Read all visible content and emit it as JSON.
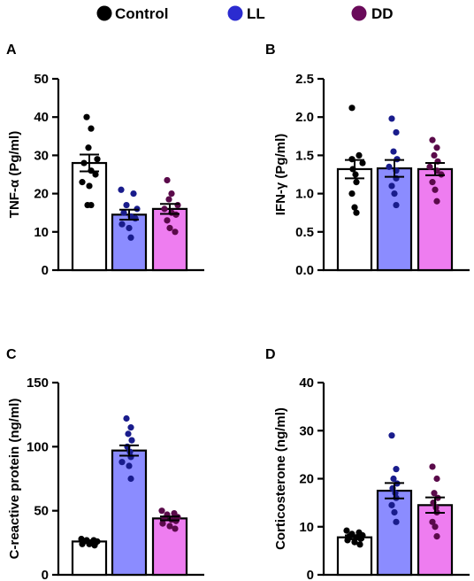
{
  "legend": [
    {
      "label": "Control",
      "color": "#000000"
    },
    {
      "label": "LL",
      "color": "#2b2bd0"
    },
    {
      "label": "DD",
      "color": "#6a0a5a"
    }
  ],
  "chart_data": [
    {
      "type": "bar",
      "panel": "A",
      "ylabel": "TNF-α (Pg/ml)",
      "ylim": [
        0,
        50
      ],
      "yticks": [
        0,
        10,
        20,
        30,
        40,
        50
      ],
      "error_bars": "SEM",
      "series": [
        {
          "name": "Control",
          "mean": 28,
          "sem": 2.2,
          "bar_color": "#ffffff",
          "point_color": "#000000",
          "points": [
            40,
            37,
            32,
            29,
            28,
            26,
            25,
            23,
            22,
            17,
            17
          ]
        },
        {
          "name": "LL",
          "mean": 14.5,
          "sem": 1.3,
          "bar_color": "#8b8cff",
          "point_color": "#191c8c",
          "points": [
            21,
            20,
            17,
            16,
            15,
            14,
            13.5,
            12,
            11,
            8.5
          ]
        },
        {
          "name": "DD",
          "mean": 16,
          "sem": 1.3,
          "bar_color": "#ee7df0",
          "point_color": "#5a0a4a",
          "points": [
            23.5,
            20,
            18.5,
            17,
            16,
            15,
            14.5,
            13,
            11,
            10
          ]
        }
      ]
    },
    {
      "type": "bar",
      "panel": "B",
      "ylabel": "IFN-γ (Pg/ml)",
      "ylim": [
        0,
        2.5
      ],
      "yticks": [
        0.0,
        0.5,
        1.0,
        1.5,
        2.0,
        2.5
      ],
      "ytick_labels": [
        "0.0",
        "0.5",
        "1.0",
        "1.5",
        "2.0",
        "2.5"
      ],
      "error_bars": "SEM",
      "series": [
        {
          "name": "Control",
          "mean": 1.32,
          "sem": 0.12,
          "bar_color": "#ffffff",
          "point_color": "#000000",
          "points": [
            2.12,
            1.5,
            1.45,
            1.4,
            1.32,
            1.25,
            1.15,
            1.0,
            0.82,
            0.75
          ]
        },
        {
          "name": "LL",
          "mean": 1.33,
          "sem": 0.11,
          "bar_color": "#8b8cff",
          "point_color": "#191c8c",
          "points": [
            1.98,
            1.8,
            1.55,
            1.45,
            1.35,
            1.3,
            1.2,
            1.1,
            1.0,
            0.85
          ]
        },
        {
          "name": "DD",
          "mean": 1.32,
          "sem": 0.08,
          "bar_color": "#ee7df0",
          "point_color": "#5a0a4a",
          "points": [
            1.7,
            1.6,
            1.5,
            1.42,
            1.35,
            1.3,
            1.25,
            1.15,
            1.05,
            0.9
          ]
        }
      ]
    },
    {
      "type": "bar",
      "panel": "C",
      "ylabel": "C-reactive protein (ng/ml)",
      "ylim": [
        0,
        150
      ],
      "yticks": [
        0,
        50,
        100,
        150
      ],
      "error_bars": "SEM",
      "series": [
        {
          "name": "Control",
          "mean": 26,
          "sem": 1.0,
          "bar_color": "#ffffff",
          "point_color": "#000000",
          "points": [
            28,
            27,
            27,
            26,
            26,
            25,
            25,
            24,
            24,
            23
          ]
        },
        {
          "name": "LL",
          "mean": 97,
          "sem": 4.0,
          "bar_color": "#8b8cff",
          "point_color": "#191c8c",
          "points": [
            122,
            115,
            110,
            105,
            100,
            96,
            92,
            88,
            85,
            75
          ]
        },
        {
          "name": "DD",
          "mean": 44,
          "sem": 1.5,
          "bar_color": "#ee7df0",
          "point_color": "#5a0a4a",
          "points": [
            50,
            48,
            47,
            45,
            44,
            43,
            42,
            40,
            38,
            36
          ]
        }
      ]
    },
    {
      "type": "bar",
      "panel": "D",
      "ylabel": "Corticosterone  (ng/ml)",
      "ylim": [
        0,
        40
      ],
      "yticks": [
        0,
        10,
        20,
        30,
        40
      ],
      "error_bars": "SEM",
      "series": [
        {
          "name": "Control",
          "mean": 7.8,
          "sem": 0.4,
          "bar_color": "#ffffff",
          "point_color": "#000000",
          "points": [
            9.2,
            8.8,
            8.5,
            8.2,
            8.0,
            7.8,
            7.5,
            7.2,
            6.8,
            6.3
          ]
        },
        {
          "name": "LL",
          "mean": 17.5,
          "sem": 1.6,
          "bar_color": "#8b8cff",
          "point_color": "#191c8c",
          "points": [
            29,
            22,
            20,
            19,
            18,
            17,
            16,
            14.5,
            13,
            11
          ]
        },
        {
          "name": "DD",
          "mean": 14.5,
          "sem": 1.6,
          "bar_color": "#ee7df0",
          "point_color": "#5a0a4a",
          "points": [
            22.5,
            20,
            17,
            16,
            15,
            14,
            13,
            11,
            10,
            8
          ]
        }
      ]
    }
  ]
}
